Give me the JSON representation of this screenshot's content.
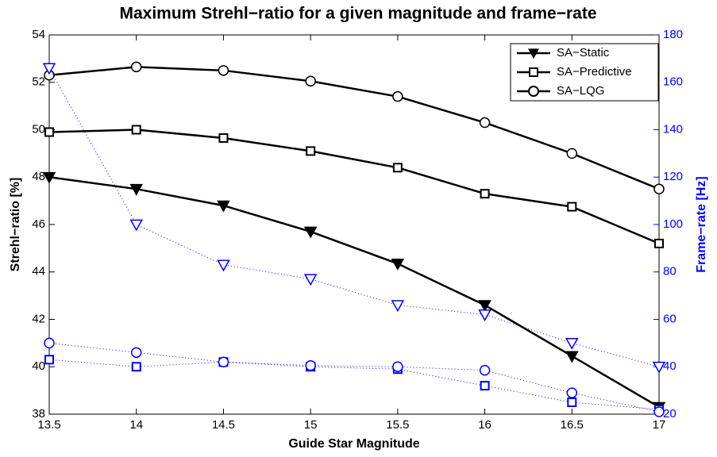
{
  "chart_data": {
    "type": "line",
    "title": "Maximum Strehl−ratio for a given magnitude and frame−rate",
    "xlabel": "Guide Star Magnitude",
    "ylabel": "Strehl−ratio [%]",
    "y2label": "Frame−rate [Hz]",
    "x": [
      13.5,
      14,
      14.5,
      15,
      15.5,
      16,
      16.5,
      17
    ],
    "xlim": [
      13.5,
      17
    ],
    "xticks": [
      13.5,
      14,
      14.5,
      15,
      15.5,
      16,
      16.5,
      17
    ],
    "ylim": [
      38,
      54
    ],
    "yticks": [
      38,
      40,
      42,
      44,
      46,
      48,
      50,
      52,
      54
    ],
    "y2lim": [
      20,
      180
    ],
    "y2ticks": [
      20,
      40,
      60,
      80,
      100,
      120,
      140,
      160,
      180
    ],
    "y2color": "#0000ff",
    "legend": "upper right",
    "grid": false,
    "series": [
      {
        "name": "SA−Static",
        "color": "#000000",
        "marker": "v",
        "linestyle": "solid",
        "values": [
          48.0,
          47.5,
          46.8,
          45.7,
          44.35,
          42.6,
          40.45,
          38.3
        ]
      },
      {
        "name": "SA−Predictive",
        "color": "#000000",
        "marker": "s",
        "linestyle": "solid",
        "values": [
          49.9,
          50.0,
          49.65,
          49.1,
          48.4,
          47.3,
          46.75,
          45.2
        ]
      },
      {
        "name": "SA−LQG",
        "color": "#000000",
        "marker": "o",
        "linestyle": "solid",
        "values": [
          52.3,
          52.65,
          52.5,
          52.05,
          51.4,
          50.3,
          49.0,
          47.5
        ]
      },
      {
        "color": "#0000ff",
        "marker": "v-open",
        "linestyle": "dotted",
        "axis": "y2",
        "values": [
          166,
          100,
          83,
          77,
          66,
          62,
          50,
          40
        ]
      },
      {
        "color": "#0000ff",
        "marker": "s",
        "linestyle": "dotted",
        "axis": "y2",
        "values": [
          43,
          40,
          42,
          40,
          39,
          32,
          25,
          22
        ]
      },
      {
        "color": "#0000ff",
        "marker": "o",
        "linestyle": "dotted",
        "axis": "y2",
        "values": [
          50,
          46,
          42,
          40.5,
          40,
          38.5,
          29,
          21
        ]
      }
    ]
  }
}
